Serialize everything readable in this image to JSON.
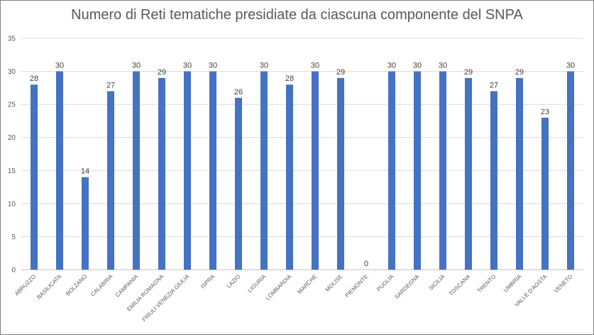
{
  "chart_data": {
    "type": "bar",
    "title": "Numero di Reti tematiche presidiate da ciascuna componente del SNPA",
    "xlabel": "",
    "ylabel": "",
    "ylim": [
      0,
      35
    ],
    "yticks": [
      0,
      5,
      10,
      15,
      20,
      25,
      30,
      35
    ],
    "grid": true,
    "legend": "none",
    "bar_color": "#4472c4",
    "categories": [
      "ABRUZZO",
      "BASILICATA",
      "BOLZANO",
      "CALABRIA",
      "CAMPANIA",
      "EMILIA ROMAGNA",
      "FRIULI VENEZIA GIULIA",
      "ISPRA",
      "LAZIO",
      "LIGURIA",
      "LOMBARDIA",
      "MARCHE",
      "MOLISE",
      "PIEMONTE",
      "PUGLIA",
      "SARDEGNA",
      "SICILIA",
      "TOSCANA",
      "TRENTO",
      "UMBRIA",
      "VALLE D'AOSTA",
      "VENETO"
    ],
    "values": [
      28,
      30,
      14,
      27,
      30,
      29,
      30,
      30,
      26,
      30,
      28,
      30,
      29,
      0,
      30,
      30,
      30,
      29,
      27,
      29,
      23,
      30
    ]
  }
}
